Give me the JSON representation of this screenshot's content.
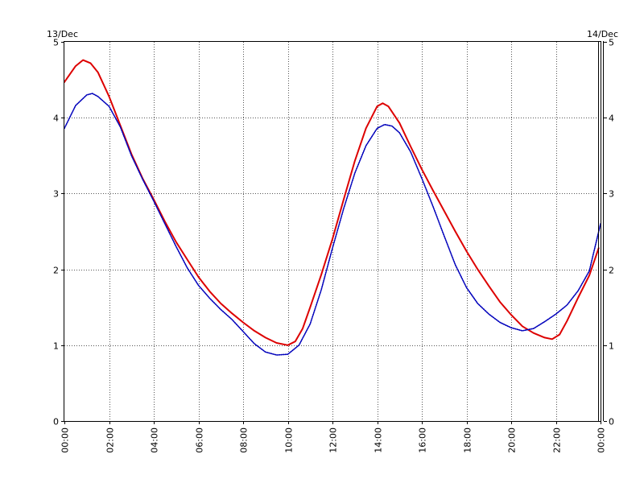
{
  "chart_data": {
    "type": "line",
    "title": "",
    "xlabel": "",
    "ylabel": "",
    "date_start_label": "13/Dec",
    "date_end_label": "14/Dec",
    "x_ticks": [
      "00:00",
      "02:00",
      "04:00",
      "06:00",
      "08:00",
      "10:00",
      "12:00",
      "14:00",
      "16:00",
      "18:00",
      "20:00",
      "22:00",
      "00:00"
    ],
    "y_ticks": [
      0,
      1,
      2,
      3,
      4,
      5
    ],
    "xlim": [
      "00:00",
      "24:00"
    ],
    "ylim": [
      0,
      5
    ],
    "grid": true,
    "series": [
      {
        "color": "#dd0000",
        "style": "solid",
        "points": [
          [
            "00:00",
            4.47
          ],
          [
            "00:30",
            4.68
          ],
          [
            "00:50",
            4.76
          ],
          [
            "01:10",
            4.72
          ],
          [
            "01:30",
            4.6
          ],
          [
            "02:00",
            4.28
          ],
          [
            "02:30",
            3.9
          ],
          [
            "03:00",
            3.52
          ],
          [
            "03:30",
            3.2
          ],
          [
            "04:00",
            2.92
          ],
          [
            "04:30",
            2.63
          ],
          [
            "05:00",
            2.36
          ],
          [
            "05:30",
            2.13
          ],
          [
            "06:00",
            1.9
          ],
          [
            "06:30",
            1.71
          ],
          [
            "07:00",
            1.55
          ],
          [
            "07:30",
            1.42
          ],
          [
            "08:00",
            1.3
          ],
          [
            "08:30",
            1.19
          ],
          [
            "09:00",
            1.1
          ],
          [
            "09:30",
            1.03
          ],
          [
            "10:00",
            1.0
          ],
          [
            "10:20",
            1.05
          ],
          [
            "10:40",
            1.22
          ],
          [
            "11:00",
            1.5
          ],
          [
            "11:30",
            1.93
          ],
          [
            "12:00",
            2.4
          ],
          [
            "12:30",
            2.92
          ],
          [
            "13:00",
            3.43
          ],
          [
            "13:30",
            3.86
          ],
          [
            "14:00",
            4.15
          ],
          [
            "14:15",
            4.19
          ],
          [
            "14:30",
            4.15
          ],
          [
            "15:00",
            3.93
          ],
          [
            "15:30",
            3.62
          ],
          [
            "16:00",
            3.32
          ],
          [
            "16:30",
            3.04
          ],
          [
            "17:00",
            2.77
          ],
          [
            "17:30",
            2.5
          ],
          [
            "18:00",
            2.24
          ],
          [
            "18:30",
            2.0
          ],
          [
            "19:00",
            1.78
          ],
          [
            "19:30",
            1.57
          ],
          [
            "20:00",
            1.4
          ],
          [
            "20:30",
            1.25
          ],
          [
            "21:00",
            1.16
          ],
          [
            "21:30",
            1.1
          ],
          [
            "21:50",
            1.08
          ],
          [
            "22:10",
            1.14
          ],
          [
            "22:30",
            1.32
          ],
          [
            "23:00",
            1.63
          ],
          [
            "23:30",
            1.92
          ],
          [
            "23:55",
            2.28
          ]
        ]
      },
      {
        "color": "#0000bb",
        "style": "dotted",
        "points": [
          [
            "00:00",
            3.86
          ],
          [
            "00:30",
            4.16
          ],
          [
            "01:00",
            4.3
          ],
          [
            "01:15",
            4.32
          ],
          [
            "01:30",
            4.28
          ],
          [
            "02:00",
            4.15
          ],
          [
            "02:30",
            3.88
          ],
          [
            "03:00",
            3.5
          ],
          [
            "03:30",
            3.19
          ],
          [
            "04:00",
            2.9
          ],
          [
            "04:30",
            2.6
          ],
          [
            "05:00",
            2.3
          ],
          [
            "05:30",
            2.02
          ],
          [
            "06:00",
            1.79
          ],
          [
            "06:30",
            1.62
          ],
          [
            "07:00",
            1.47
          ],
          [
            "07:30",
            1.34
          ],
          [
            "08:00",
            1.18
          ],
          [
            "08:30",
            1.02
          ],
          [
            "09:00",
            0.91
          ],
          [
            "09:30",
            0.87
          ],
          [
            "10:00",
            0.88
          ],
          [
            "10:30",
            1.0
          ],
          [
            "11:00",
            1.28
          ],
          [
            "11:30",
            1.73
          ],
          [
            "12:00",
            2.28
          ],
          [
            "12:30",
            2.8
          ],
          [
            "13:00",
            3.27
          ],
          [
            "13:30",
            3.63
          ],
          [
            "14:00",
            3.86
          ],
          [
            "14:20",
            3.91
          ],
          [
            "14:40",
            3.89
          ],
          [
            "15:00",
            3.8
          ],
          [
            "15:30",
            3.55
          ],
          [
            "16:00",
            3.2
          ],
          [
            "16:30",
            2.83
          ],
          [
            "17:00",
            2.44
          ],
          [
            "17:30",
            2.06
          ],
          [
            "18:00",
            1.76
          ],
          [
            "18:30",
            1.55
          ],
          [
            "19:00",
            1.41
          ],
          [
            "19:30",
            1.3
          ],
          [
            "20:00",
            1.23
          ],
          [
            "20:30",
            1.19
          ],
          [
            "21:00",
            1.22
          ],
          [
            "21:30",
            1.31
          ],
          [
            "22:00",
            1.41
          ],
          [
            "22:30",
            1.53
          ],
          [
            "23:00",
            1.72
          ],
          [
            "23:30",
            1.98
          ],
          [
            "24:00",
            2.6
          ]
        ]
      }
    ]
  }
}
